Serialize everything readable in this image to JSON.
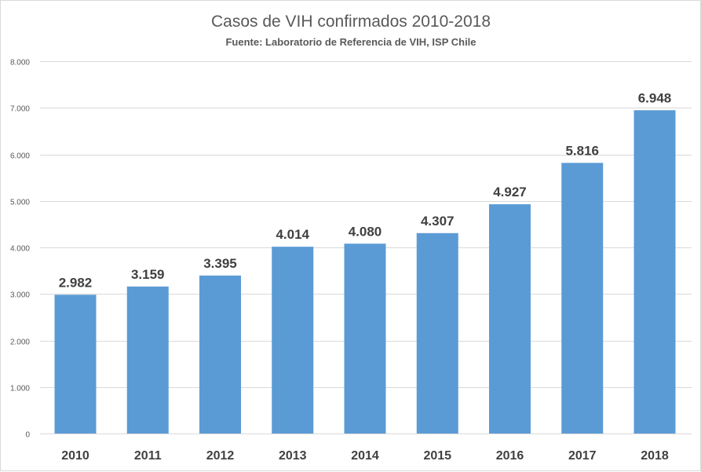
{
  "chart_data": {
    "type": "bar",
    "title": "Casos de VIH confirmados 2010-2018",
    "subtitle": "Fuente: Laboratorio de Referencia de VIH, ISP Chile",
    "categories": [
      "2010",
      "2011",
      "2012",
      "2013",
      "2014",
      "2015",
      "2016",
      "2017",
      "2018"
    ],
    "values": [
      2982,
      3159,
      3395,
      4014,
      4080,
      4307,
      4927,
      5816,
      6948
    ],
    "data_labels": [
      "2.982",
      "3.159",
      "3.395",
      "4.014",
      "4.080",
      "4.307",
      "4.927",
      "5.816",
      "6.948"
    ],
    "yticks": [
      0,
      1000,
      2000,
      3000,
      4000,
      5000,
      6000,
      7000,
      8000
    ],
    "ytick_labels": [
      "0",
      "1.000",
      "2.000",
      "3.000",
      "4.000",
      "5.000",
      "6.000",
      "7.000",
      "8.000"
    ],
    "ylim": [
      0,
      8000
    ],
    "xlabel": "",
    "ylabel": "",
    "grid": true,
    "legend": "none",
    "bar_color": "#5b9bd5",
    "grid_color": "#d9d9d9"
  }
}
